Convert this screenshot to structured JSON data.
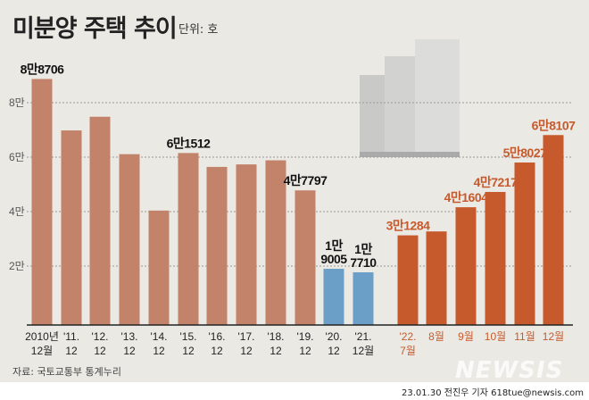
{
  "header": {
    "title": "미분양 주택 추이",
    "unit": "단위: 호"
  },
  "footer": {
    "source": "자료: 국토교통부 통계누리",
    "watermark": "NEWSIS",
    "credit": "23.01.30 전진우 기자 618tue@newsis.com"
  },
  "colors": {
    "annual": "#c3826a",
    "pandemic": "#6b9fc8",
    "recent": "#c75a2c",
    "background": "#ebe9e4"
  },
  "chart_data": {
    "type": "bar",
    "title": "미분양 주택 추이",
    "ylabel": "단위: 호",
    "ylim": [
      0,
      90000
    ],
    "yticks": [
      {
        "v": 20000,
        "label": "2만"
      },
      {
        "v": 40000,
        "label": "4만"
      },
      {
        "v": 60000,
        "label": "6만"
      },
      {
        "v": 80000,
        "label": "8만"
      }
    ],
    "grid": true,
    "categories": [
      {
        "line1": "2010년",
        "line2": "12월"
      },
      {
        "line1": "'11.",
        "line2": "12"
      },
      {
        "line1": "'12.",
        "line2": "12"
      },
      {
        "line1": "'13.",
        "line2": "12"
      },
      {
        "line1": "'14.",
        "line2": "12"
      },
      {
        "line1": "'15.",
        "line2": "12"
      },
      {
        "line1": "'16.",
        "line2": "12"
      },
      {
        "line1": "'17.",
        "line2": "12"
      },
      {
        "line1": "'18.",
        "line2": "12"
      },
      {
        "line1": "'19.",
        "line2": "12"
      },
      {
        "line1": "'20.",
        "line2": "12"
      },
      {
        "line1": "'21.",
        "line2": "12월"
      },
      {
        "line1": "'22.",
        "line2": "7월"
      },
      {
        "line1": "8월",
        "line2": ""
      },
      {
        "line1": "9월",
        "line2": ""
      },
      {
        "line1": "10월",
        "line2": ""
      },
      {
        "line1": "11월",
        "line2": ""
      },
      {
        "line1": "12월",
        "line2": ""
      }
    ],
    "values": [
      88706,
      69807,
      74835,
      61091,
      40379,
      61512,
      56413,
      57330,
      58838,
      47797,
      19005,
      17710,
      31284,
      32722,
      41604,
      47217,
      58027,
      68107
    ],
    "groups": [
      "annual",
      "annual",
      "annual",
      "annual",
      "annual",
      "annual",
      "annual",
      "annual",
      "annual",
      "annual",
      "pandemic",
      "pandemic",
      "recent",
      "recent",
      "recent",
      "recent",
      "recent",
      "recent"
    ],
    "data_labels": [
      "8만8706",
      "",
      "",
      "",
      "",
      "6만1512",
      "",
      "",
      "",
      "4만7797",
      "1만\n9005",
      "1만\n7710",
      "3만1284",
      "",
      "4만1604",
      "4만7217",
      "5만8027",
      "6만8107"
    ]
  }
}
